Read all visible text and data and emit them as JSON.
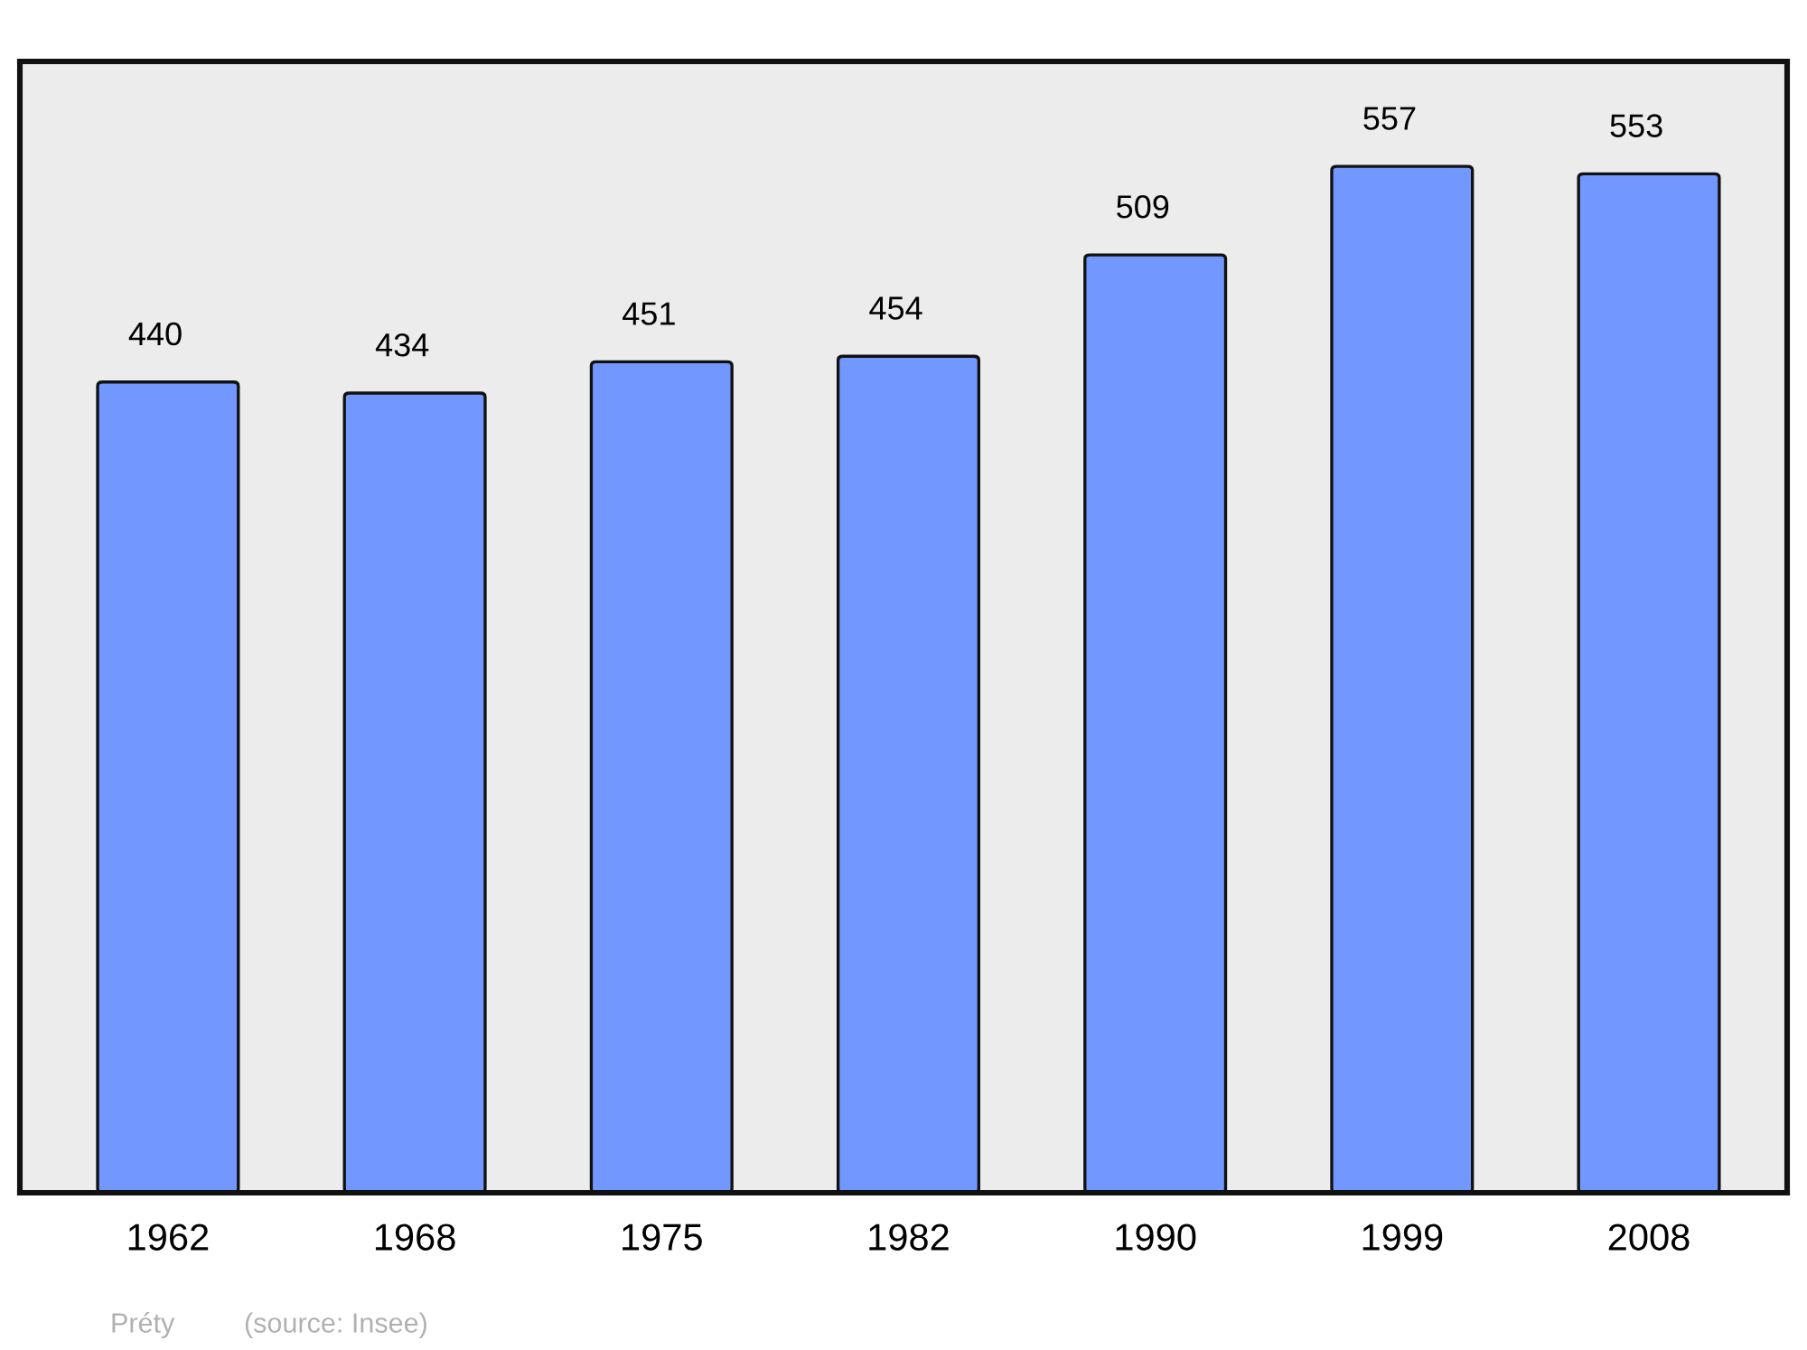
{
  "chart_data": {
    "type": "bar",
    "categories": [
      "1962",
      "1968",
      "1975",
      "1982",
      "1990",
      "1999",
      "2008"
    ],
    "values": [
      440,
      434,
      451,
      454,
      509,
      557,
      553
    ],
    "color": "#7298ff",
    "ylim": [
      0,
      614
    ],
    "data_labels": true,
    "grid": false,
    "legend": false,
    "annotations": [
      "Préty",
      "(source: Insee)"
    ]
  }
}
